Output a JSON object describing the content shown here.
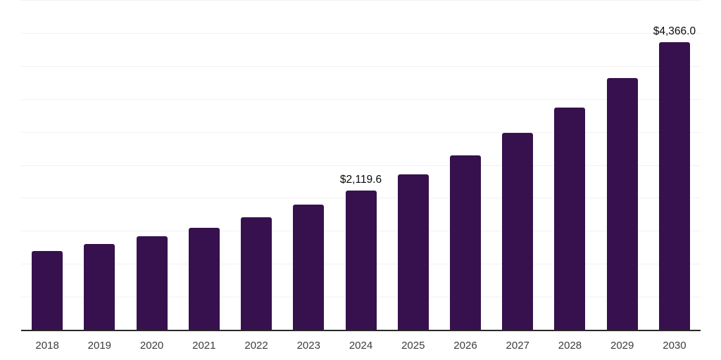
{
  "chart_data": {
    "type": "bar",
    "categories": [
      "2018",
      "2019",
      "2020",
      "2021",
      "2022",
      "2023",
      "2024",
      "2025",
      "2026",
      "2027",
      "2028",
      "2029",
      "2030"
    ],
    "values": [
      1205,
      1315,
      1430,
      1560,
      1715,
      1910,
      2119.6,
      2365,
      2650,
      2995,
      3380,
      3830,
      4366.0
    ],
    "data_labels": [
      "",
      "",
      "",
      "",
      "",
      "",
      "$2,119.6",
      "",
      "",
      "",
      "",
      "",
      "$4,366.0"
    ],
    "xlabel": "",
    "ylabel": "",
    "ylim": [
      0,
      5000
    ],
    "gridline_step": 500,
    "grid": true,
    "legend": false,
    "y_axis_tick_labels_visible": false
  },
  "colors": {
    "bar": "#36114E",
    "gridline": "#F1F1F1",
    "axis_line": "#282828",
    "data_label": "#0A0A0A",
    "year_label": "#3C3C3C",
    "background": "#FFFFFF"
  }
}
